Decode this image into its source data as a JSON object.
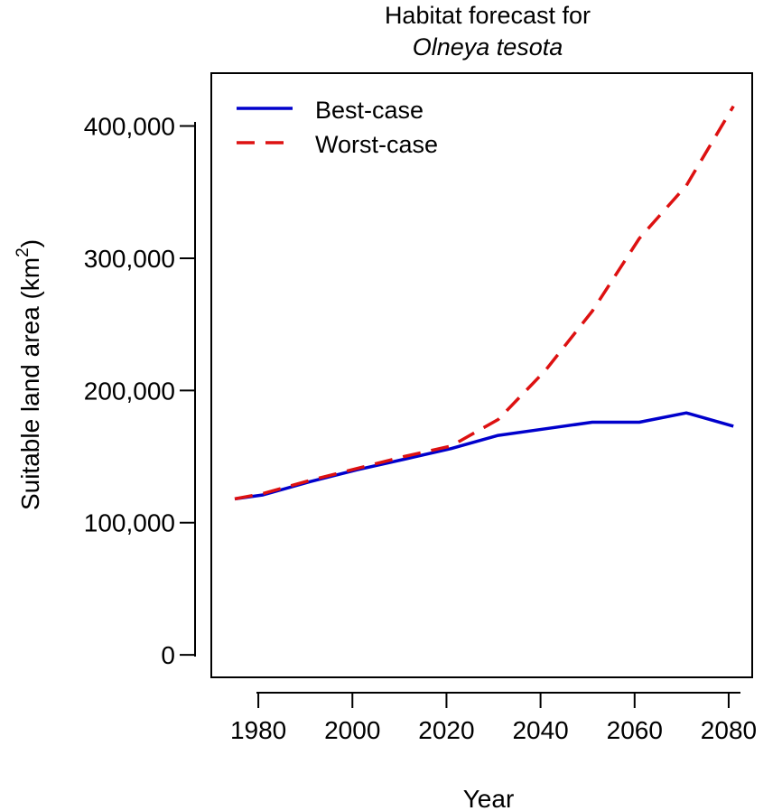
{
  "chart_data": {
    "type": "line",
    "title_line1": "Habitat forecast for",
    "title_line2": "Olneya tesota",
    "xlabel": "Year",
    "ylabel": "Suitable land area (km",
    "ylabel_sup": "2",
    "ylabel_close": ")",
    "xlim": [
      1970,
      2085
    ],
    "ylim": [
      -17000,
      440000
    ],
    "x_ticks": [
      1980,
      2000,
      2020,
      2040,
      2060,
      2080
    ],
    "x_tick_labels": [
      "1980",
      "2000",
      "2020",
      "2040",
      "2060",
      "2080"
    ],
    "y_ticks": [
      0,
      100000,
      200000,
      300000,
      400000
    ],
    "y_tick_labels": [
      "0",
      "100,000",
      "200,000",
      "300,000",
      "400,000"
    ],
    "legend_position": "top-left",
    "grid": false,
    "series": [
      {
        "name": "Best-case",
        "color": "#0000CC",
        "dash": "solid",
        "x": [
          1975,
          1981,
          1991,
          2001,
          2011,
          2021,
          2031,
          2041,
          2051,
          2061,
          2071,
          2081
        ],
        "y": [
          118000,
          121000,
          131000,
          140000,
          148000,
          156000,
          166000,
          171000,
          176000,
          176000,
          183000,
          173000
        ]
      },
      {
        "name": "Worst-case",
        "color": "#DD1111",
        "dash": "dashed",
        "x": [
          1975,
          1981,
          1991,
          2001,
          2011,
          2021,
          2031,
          2041,
          2051,
          2061,
          2071,
          2081
        ],
        "y": [
          118000,
          122000,
          132000,
          141000,
          150000,
          158000,
          178000,
          215000,
          260000,
          315000,
          355000,
          415000
        ]
      }
    ]
  }
}
